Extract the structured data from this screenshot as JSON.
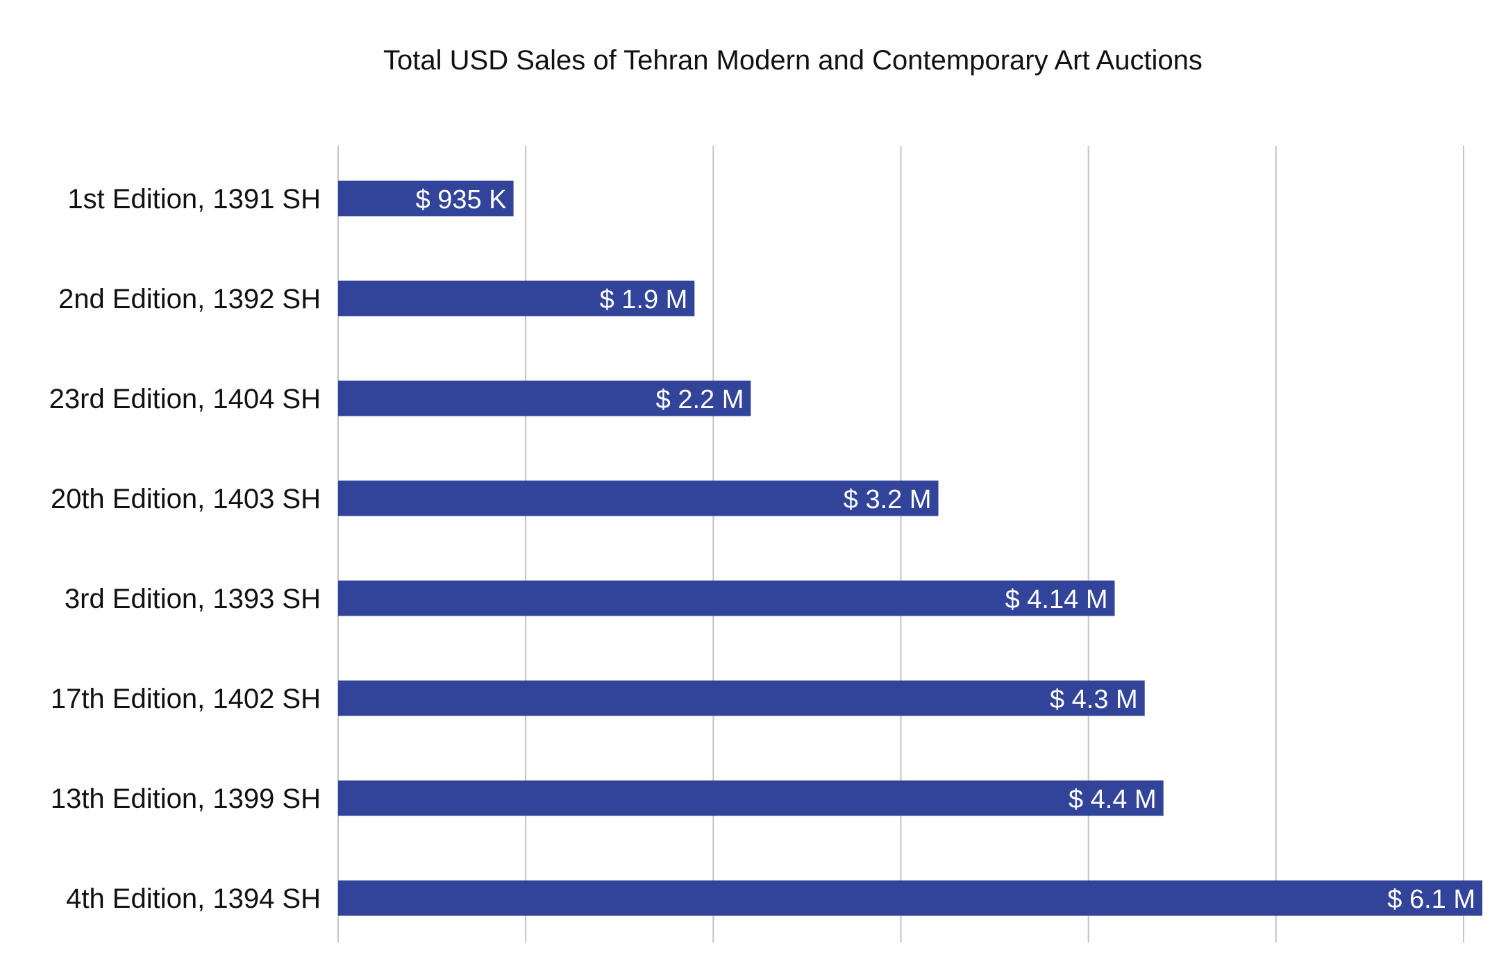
{
  "chart_data": {
    "type": "bar",
    "orientation": "horizontal",
    "title": "Total USD Sales of Tehran Modern and Contemporary Art Auctions",
    "xlabel": "",
    "ylabel": "",
    "categories": [
      "1st Edition, 1391 SH",
      "2nd Edition, 1392 SH",
      "23rd Edition, 1404 SH",
      "20th Edition, 1403 SH",
      "3rd Edition, 1393 SH",
      "17th Edition, 1402 SH",
      "13th Edition, 1399 SH",
      "4th Edition, 1394 SH"
    ],
    "values": [
      935000,
      1900000,
      2200000,
      3200000,
      4140000,
      4300000,
      4400000,
      6100000
    ],
    "data_labels": [
      "$ 935 K",
      "$ 1.9 M",
      "$ 2.2 M",
      "$ 3.2 M",
      "$ 4.14 M",
      "$ 4.3 M",
      "$ 4.4 M",
      "$ 6.1 M"
    ],
    "xlim": [
      0,
      6000000
    ],
    "gridline_values": [
      0,
      1000000,
      2000000,
      3000000,
      4000000,
      5000000,
      6000000
    ],
    "grid": true,
    "tick_labels_shown": false,
    "legend": "none",
    "bar_color": "#32449a",
    "label_color": "#ffffff",
    "grid_color": "#c4c4c4"
  }
}
